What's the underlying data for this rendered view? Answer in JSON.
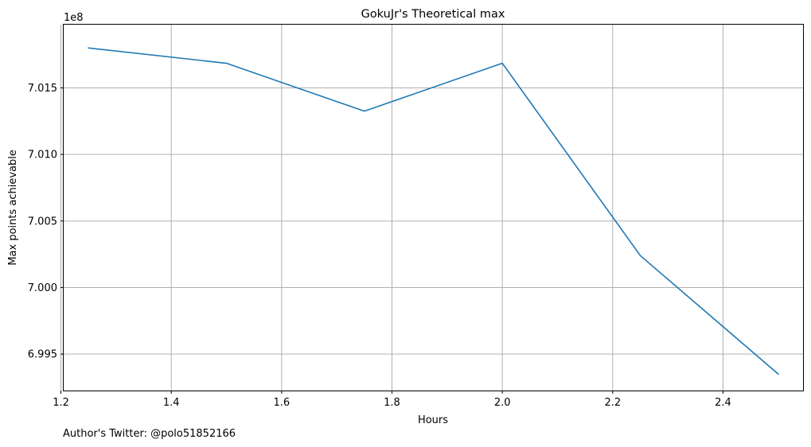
{
  "chart_data": {
    "type": "line",
    "title": "GokuJr's Theoretical max",
    "xlabel": "Hours",
    "ylabel": "Max points achievable",
    "y_offset_label": "1e8",
    "x": [
      1.25,
      1.5,
      1.75,
      2.0,
      2.25,
      2.5
    ],
    "series": [
      {
        "values": [
          701.8,
          701.685,
          701.325,
          701.685,
          700.24,
          699.35
        ],
        "color": "#1f77b4"
      }
    ],
    "xlim": [
      1.205,
      2.545
    ],
    "ylim": [
      699.226,
      701.975
    ],
    "x_ticks": [
      1.2,
      1.4,
      1.6,
      1.8,
      2.0,
      2.2,
      2.4
    ],
    "x_tick_labels": [
      "1.2",
      "1.4",
      "1.6",
      "1.8",
      "2.0",
      "2.2",
      "2.4"
    ],
    "y_ticks": [
      699.5,
      700.0,
      700.5,
      701.0,
      701.5
    ],
    "y_tick_labels": [
      "6.995",
      "7.000",
      "7.005",
      "7.010",
      "7.015"
    ],
    "grid": true
  },
  "footer": {
    "note": "Author's Twitter: @polo51852166"
  }
}
